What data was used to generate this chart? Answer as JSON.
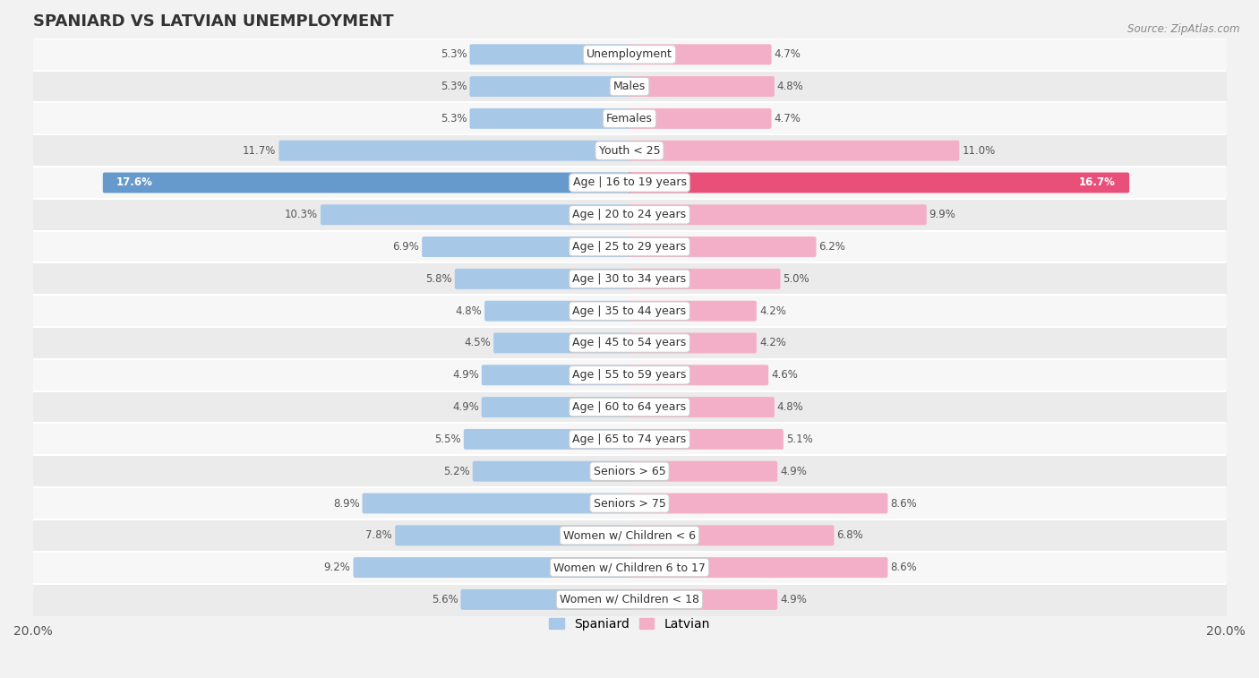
{
  "title": "SPANIARD VS LATVIAN UNEMPLOYMENT",
  "source": "Source: ZipAtlas.com",
  "categories": [
    "Unemployment",
    "Males",
    "Females",
    "Youth < 25",
    "Age | 16 to 19 years",
    "Age | 20 to 24 years",
    "Age | 25 to 29 years",
    "Age | 30 to 34 years",
    "Age | 35 to 44 years",
    "Age | 45 to 54 years",
    "Age | 55 to 59 years",
    "Age | 60 to 64 years",
    "Age | 65 to 74 years",
    "Seniors > 65",
    "Seniors > 75",
    "Women w/ Children < 6",
    "Women w/ Children 6 to 17",
    "Women w/ Children < 18"
  ],
  "spaniard_values": [
    5.3,
    5.3,
    5.3,
    11.7,
    17.6,
    10.3,
    6.9,
    5.8,
    4.8,
    4.5,
    4.9,
    4.9,
    5.5,
    5.2,
    8.9,
    7.8,
    9.2,
    5.6
  ],
  "latvian_values": [
    4.7,
    4.8,
    4.7,
    11.0,
    16.7,
    9.9,
    6.2,
    5.0,
    4.2,
    4.2,
    4.6,
    4.8,
    5.1,
    4.9,
    8.6,
    6.8,
    8.6,
    4.9
  ],
  "spaniard_color": "#a8c8e8",
  "latvian_color": "#f4afc8",
  "spaniard_highlight_color": "#6699cc",
  "latvian_highlight_color": "#e8507a",
  "highlight_index": 4,
  "max_value": 20.0,
  "bg_color": "#f2f2f2",
  "row_light_color": "#f7f7f7",
  "row_dark_color": "#ebebeb",
  "divider_color": "#d8d8d8",
  "label_fontsize": 9.0,
  "title_fontsize": 13,
  "value_fontsize": 8.5,
  "legend_labels": [
    "Spaniard",
    "Latvian"
  ]
}
